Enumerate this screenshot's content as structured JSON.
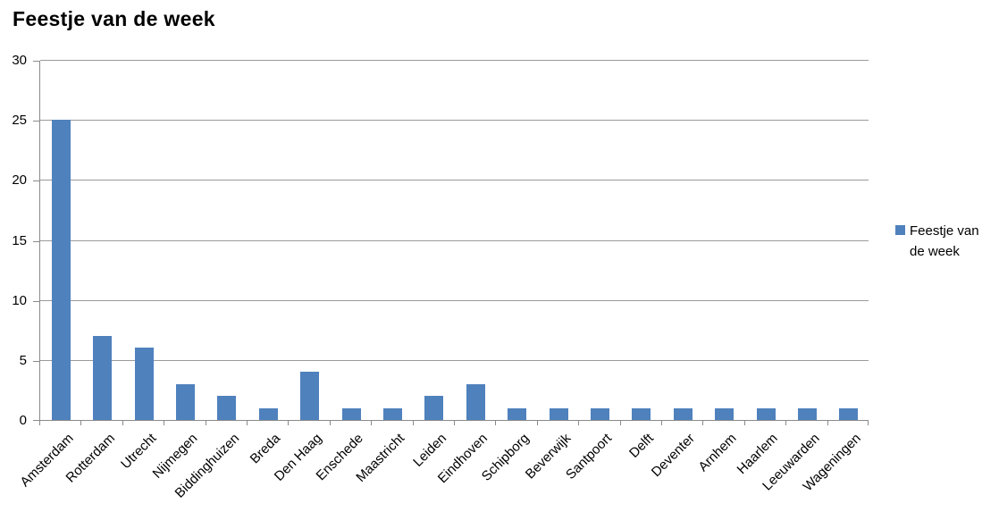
{
  "chart_data": {
    "type": "bar",
    "title": "Feestje van de week",
    "categories": [
      "Amsterdam",
      "Rotterdam",
      "Utrecht",
      "Nijmegen",
      "Biddinghuizen",
      "Breda",
      "Den Haag",
      "Enschede",
      "Maastricht",
      "Leiden",
      "Eindhoven",
      "Schipborg",
      "Beverwijk",
      "Santpoort",
      "Delft",
      "Deventer",
      "Arnhem",
      "Haarlem",
      "Leeuwarden",
      "Wageningen"
    ],
    "series": [
      {
        "name": "Feestje van de week",
        "values": [
          25,
          7,
          6,
          3,
          2,
          1,
          4,
          1,
          1,
          2,
          3,
          1,
          1,
          1,
          1,
          1,
          1,
          1,
          1,
          1
        ]
      }
    ],
    "xlabel": "",
    "ylabel": "",
    "ylim": [
      0,
      30
    ],
    "yticks": [
      0,
      5,
      10,
      15,
      20,
      25,
      30
    ],
    "grid": "horizontal",
    "legend_position": "right",
    "x_tick_label_rotation_deg": 45,
    "bar_color": "#4F81BD",
    "gridline_color": "#9a9a9a",
    "axis_color": "#8a8a8a",
    "text_color": "#000000"
  }
}
